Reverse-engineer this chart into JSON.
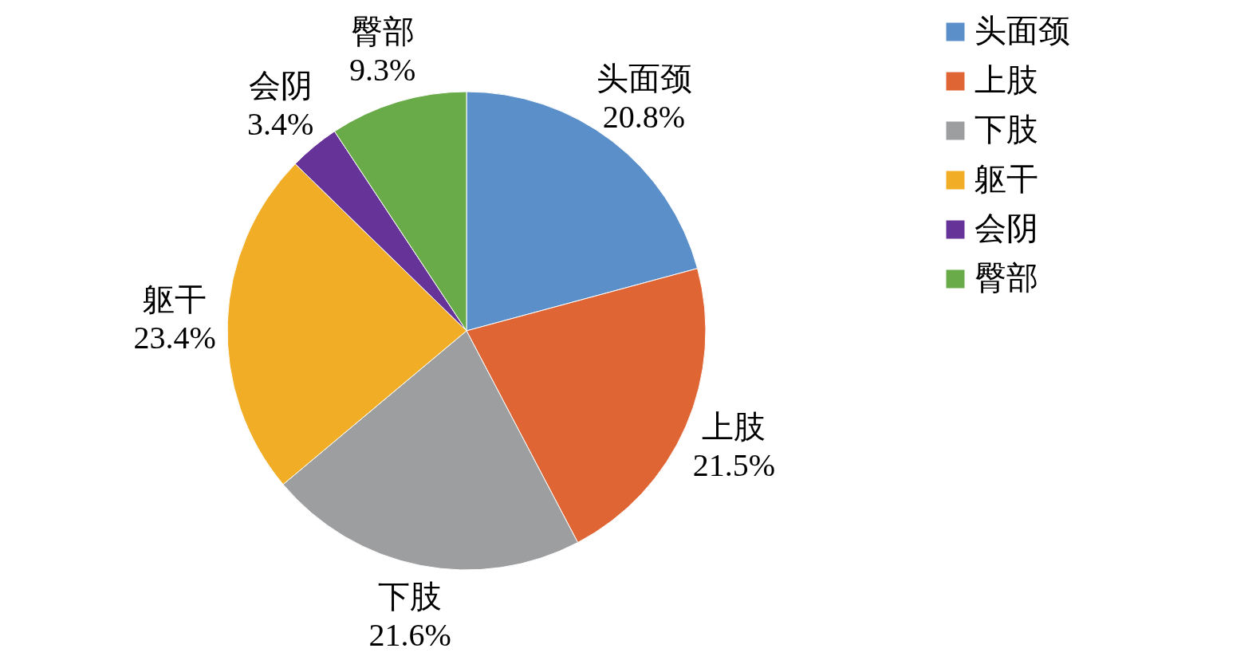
{
  "chart_data": {
    "type": "pie",
    "categories": [
      "头面颈",
      "上肢",
      "下肢",
      "躯干",
      "会阴",
      "臀部"
    ],
    "values": [
      20.8,
      21.5,
      21.6,
      23.4,
      3.4,
      9.3
    ],
    "colors": [
      "#5b8fc9",
      "#e06535",
      "#9d9ea0",
      "#f0ad25",
      "#663399",
      "#69ab48"
    ],
    "value_labels": [
      "20.8%",
      "21.5%",
      "21.6%",
      "23.4%",
      "3.4%",
      "9.3%"
    ],
    "legend": "right"
  }
}
